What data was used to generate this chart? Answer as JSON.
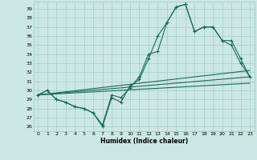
{
  "xlabel": "Humidex (Indice chaleur)",
  "xlim": [
    -0.5,
    23.5
  ],
  "ylim": [
    25.5,
    39.8
  ],
  "xticks": [
    0,
    1,
    2,
    3,
    4,
    5,
    6,
    7,
    8,
    9,
    10,
    11,
    12,
    13,
    14,
    15,
    16,
    17,
    18,
    19,
    20,
    21,
    22,
    23
  ],
  "yticks": [
    26,
    27,
    28,
    29,
    30,
    31,
    32,
    33,
    34,
    35,
    36,
    37,
    38,
    39
  ],
  "background_color": "#cce8e2",
  "grid_color": "#96c8be",
  "line_color": "#1a6b5a",
  "curve1_x": [
    0,
    1,
    2,
    3,
    4,
    5,
    6,
    7,
    8,
    9,
    10,
    11,
    12,
    13,
    14,
    15,
    16,
    17,
    18,
    19,
    20,
    21,
    22,
    23
  ],
  "curve1_y": [
    29.5,
    30.0,
    29.0,
    28.7,
    28.2,
    28.0,
    27.5,
    26.0,
    29.2,
    28.7,
    30.5,
    31.2,
    33.5,
    36.0,
    37.5,
    39.2,
    39.5,
    36.5,
    37.0,
    37.0,
    35.5,
    35.5,
    33.5,
    31.5
  ],
  "curve2_x": [
    0,
    1,
    2,
    3,
    4,
    5,
    6,
    7,
    8,
    9,
    10,
    11,
    12,
    13,
    14,
    15,
    16,
    17,
    18,
    19,
    20,
    21,
    22,
    23
  ],
  "curve2_y": [
    29.5,
    30.0,
    29.0,
    28.7,
    28.2,
    28.0,
    27.5,
    26.2,
    29.5,
    29.2,
    30.3,
    31.5,
    34.0,
    34.3,
    37.5,
    39.2,
    39.5,
    36.5,
    37.0,
    37.0,
    35.5,
    35.0,
    33.0,
    31.5
  ],
  "trend1_y": [
    29.5,
    31.5
  ],
  "trend2_y": [
    29.5,
    32.2
  ],
  "trend3_y": [
    29.5,
    30.8
  ]
}
